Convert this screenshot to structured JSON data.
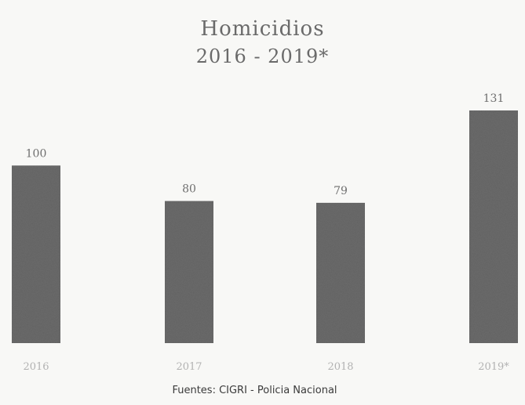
{
  "chart_data": {
    "type": "bar",
    "title": "Homicidios",
    "subtitle": "2016 - 2019*",
    "categories": [
      "2016",
      "2017",
      "2018",
      "2019*"
    ],
    "values": [
      100,
      80,
      79,
      131
    ],
    "data_labels": [
      "100",
      "80",
      "79",
      "131"
    ],
    "xlabel": "",
    "ylabel": "",
    "ylim": [
      0,
      131
    ],
    "grid": false,
    "legend": "none",
    "bar_color": "#6b6b6b"
  },
  "source": "Fuentes: CIGRI - Policia Nacional"
}
